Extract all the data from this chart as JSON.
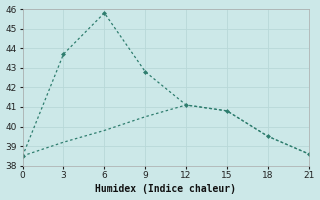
{
  "line1_x": [
    0,
    3,
    6,
    9,
    12,
    15,
    18,
    21
  ],
  "line1_y": [
    38.5,
    43.7,
    45.8,
    42.8,
    41.1,
    40.8,
    39.5,
    38.6
  ],
  "line2_x": [
    0,
    3,
    6,
    9,
    12,
    15,
    18,
    21
  ],
  "line2_y": [
    38.5,
    39.2,
    39.8,
    40.5,
    41.1,
    40.8,
    39.5,
    38.6
  ],
  "xlabel": "Humidex (Indice chaleur)",
  "ylim": [
    38,
    46
  ],
  "xlim": [
    0,
    21
  ],
  "xticks": [
    0,
    3,
    6,
    9,
    12,
    15,
    18,
    21
  ],
  "yticks": [
    38,
    39,
    40,
    41,
    42,
    43,
    44,
    45,
    46
  ],
  "line_color": "#2e7d6e",
  "bg_color": "#cce8e8",
  "grid_color": "#b8d8d8"
}
